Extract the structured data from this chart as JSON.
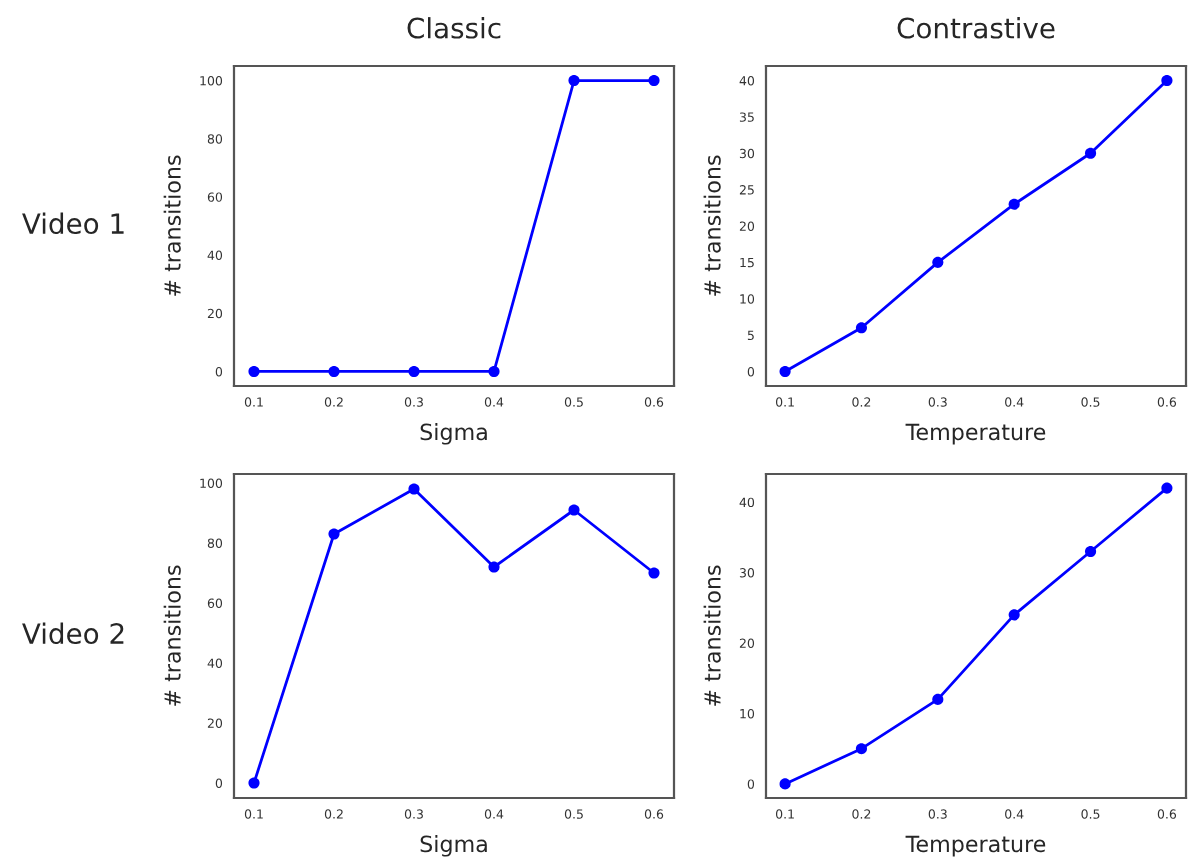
{
  "chart_data": [
    {
      "type": "line",
      "title": "Classic",
      "xlabel": "Sigma",
      "ylabel": "# transitions",
      "annotations": [
        "Video 1"
      ],
      "x": [
        0.1,
        0.2,
        0.3,
        0.4,
        0.5,
        0.6
      ],
      "series": [
        {
          "color": "#0000ff",
          "values": [
            0,
            0,
            0,
            0,
            100,
            100
          ]
        }
      ],
      "xlim": [
        0.075,
        0.625
      ],
      "ylim": [
        -5,
        105
      ],
      "xticks": [
        0.1,
        0.2,
        0.3,
        0.4,
        0.5,
        0.6
      ],
      "yticks": [
        0,
        20,
        40,
        60,
        80,
        100
      ],
      "marker": "circle",
      "line_style": "solid",
      "grid": false
    },
    {
      "type": "line",
      "title": "Contrastive",
      "xlabel": "Temperature",
      "ylabel": "# transitions",
      "x": [
        0.1,
        0.2,
        0.3,
        0.4,
        0.5,
        0.6
      ],
      "series": [
        {
          "color": "#0000ff",
          "values": [
            0,
            6,
            15,
            23,
            30,
            40
          ]
        }
      ],
      "xlim": [
        0.075,
        0.625
      ],
      "ylim": [
        -2,
        42
      ],
      "xticks": [
        0.1,
        0.2,
        0.3,
        0.4,
        0.5,
        0.6
      ],
      "yticks": [
        0,
        5,
        10,
        15,
        20,
        25,
        30,
        35,
        40
      ],
      "marker": "circle",
      "line_style": "solid",
      "grid": false
    },
    {
      "type": "line",
      "xlabel": "Sigma",
      "ylabel": "# transitions",
      "annotations": [
        "Video 2"
      ],
      "x": [
        0.1,
        0.2,
        0.3,
        0.4,
        0.5,
        0.6
      ],
      "series": [
        {
          "color": "#0000ff",
          "values": [
            0,
            83,
            98,
            72,
            91,
            70
          ]
        }
      ],
      "xlim": [
        0.075,
        0.625
      ],
      "ylim": [
        -5,
        103
      ],
      "xticks": [
        0.1,
        0.2,
        0.3,
        0.4,
        0.5,
        0.6
      ],
      "yticks": [
        0,
        20,
        40,
        60,
        80,
        100
      ],
      "marker": "circle",
      "line_style": "solid",
      "grid": false
    },
    {
      "type": "line",
      "xlabel": "Temperature",
      "ylabel": "# transitions",
      "x": [
        0.1,
        0.2,
        0.3,
        0.4,
        0.5,
        0.6
      ],
      "series": [
        {
          "color": "#0000ff",
          "values": [
            0,
            5,
            12,
            24,
            33,
            42
          ]
        }
      ],
      "xlim": [
        0.075,
        0.625
      ],
      "ylim": [
        -2,
        44
      ],
      "xticks": [
        0.1,
        0.2,
        0.3,
        0.4,
        0.5,
        0.6
      ],
      "yticks": [
        0,
        10,
        20,
        30,
        40
      ],
      "marker": "circle",
      "line_style": "solid",
      "grid": false
    }
  ]
}
